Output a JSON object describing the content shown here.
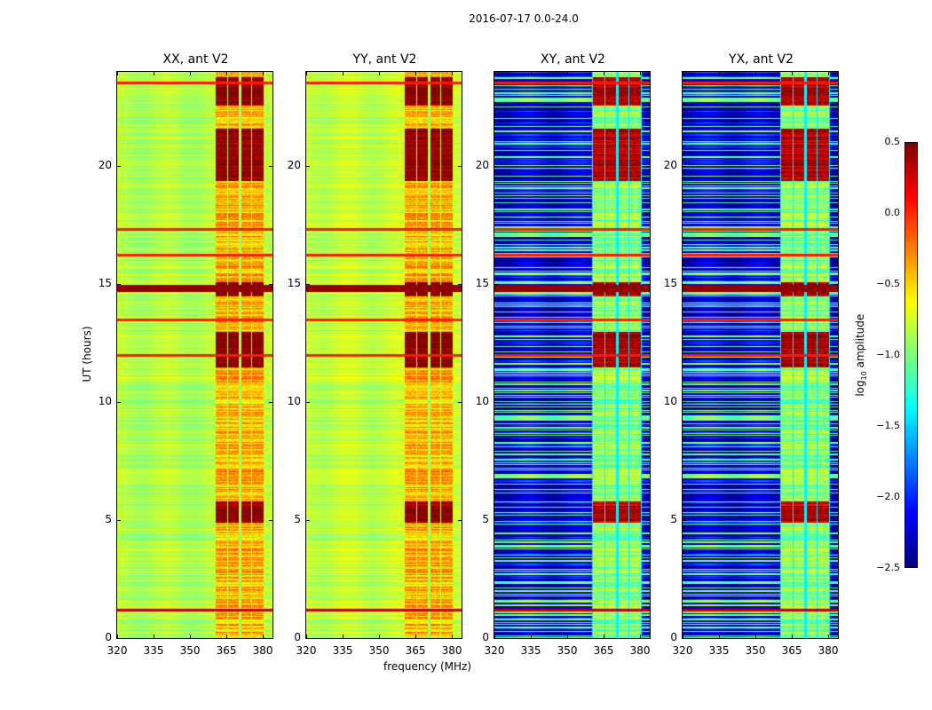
{
  "chart_data": {
    "type": "heatmap",
    "title": "2016-07-17 0.0-24.0",
    "xlabel": "frequency (MHz)",
    "ylabel": "UT (hours)",
    "xlim": [
      320,
      384
    ],
    "ylim": [
      0,
      24
    ],
    "xticks": [
      "320",
      "335",
      "350",
      "365",
      "380"
    ],
    "yticks": [
      "0",
      "5",
      "10",
      "15",
      "20"
    ],
    "panels": [
      {
        "title": "XX, ant V2",
        "background_log10": -0.85
      },
      {
        "title": "YY, ant V2",
        "background_log10": -0.8
      },
      {
        "title": "XY, ant V2",
        "background_log10": -2.3
      },
      {
        "title": "YX, ant V2",
        "background_log10": -2.3
      }
    ],
    "bright_bands_mhz": [
      [
        360.5,
        365
      ],
      [
        365.5,
        370
      ],
      [
        371,
        375
      ],
      [
        375.5,
        380
      ]
    ],
    "rfi_lines_hours": [
      1.2,
      12.0,
      13.5,
      14.85,
      16.25,
      17.35,
      23.55
    ],
    "colorbar": {
      "label_main": "log",
      "label_sub": "10",
      "label_rest": " amplitude",
      "range": [
        -2.5,
        0.5
      ],
      "ticks": [
        "0.5",
        "0.0",
        "−0.5",
        "−1.0",
        "−1.5",
        "−2.0",
        "−2.5"
      ]
    }
  }
}
